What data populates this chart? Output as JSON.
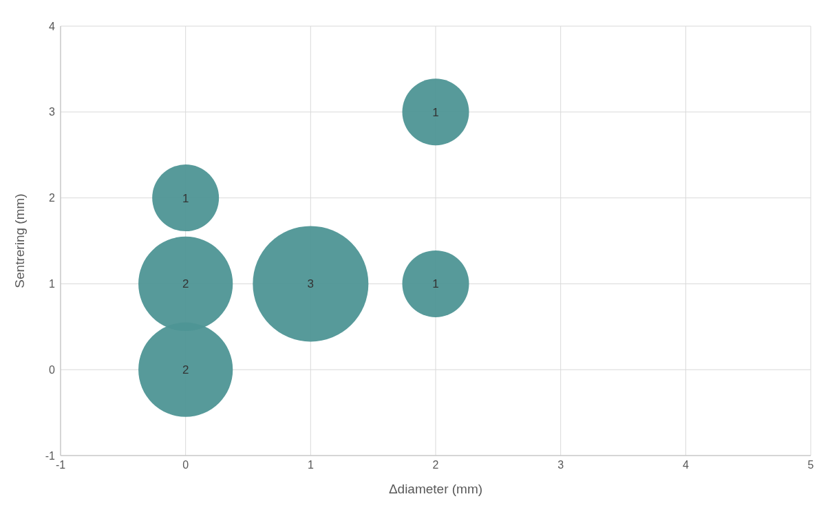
{
  "chart_data": {
    "type": "bubble",
    "xlabel": "Δdiameter (mm)",
    "ylabel": "Sentrering (mm)",
    "x": [
      0,
      0,
      0,
      1,
      2,
      2
    ],
    "values": [
      0,
      1,
      2,
      1,
      1,
      3
    ],
    "sizes": [
      2,
      2,
      1,
      3,
      1,
      1
    ],
    "value_labels": [
      "2",
      "2",
      "1",
      "3",
      "1",
      "1"
    ],
    "color": "#4e9595",
    "xlim": [
      -1,
      5
    ],
    "xticks": [
      -1,
      0,
      1,
      2,
      3,
      4,
      5
    ],
    "ylim": [
      -1,
      4
    ],
    "yticks": [
      -1,
      0,
      1,
      2,
      3,
      4
    ],
    "grid": true,
    "legend": false
  }
}
